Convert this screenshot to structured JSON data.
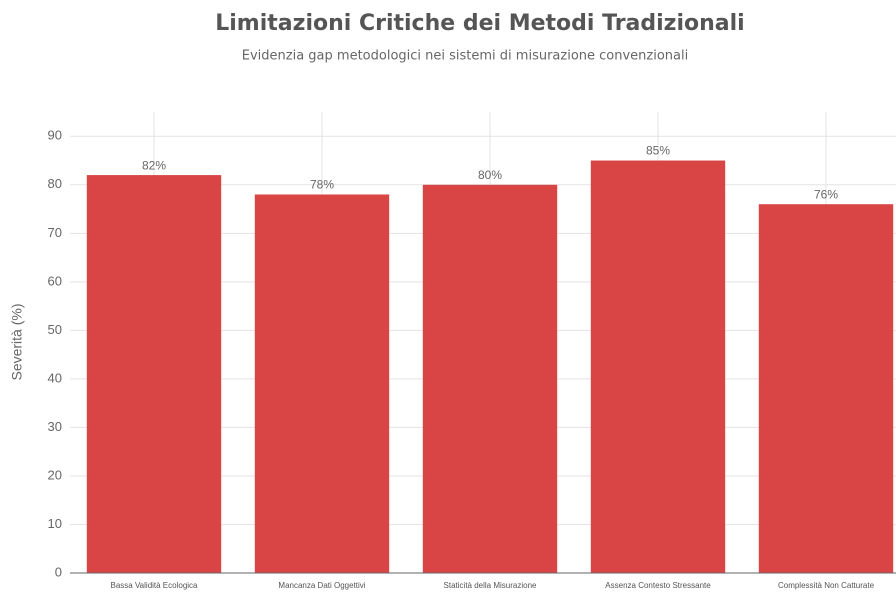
{
  "chart_data": {
    "type": "bar",
    "title": "Limitazioni Critiche dei Metodi Tradizionali",
    "subtitle": "Evidenzia gap metodologici nei sistemi di misurazione convenzionali",
    "ylabel": "Severità (%)",
    "categories": [
      "Bassa Validità Ecologica",
      "Mancanza Dati Oggettivi",
      "Staticità della Misurazione",
      "Assenza Contesto Stressante",
      "Complessità Non Catturate"
    ],
    "values": [
      82,
      78,
      80,
      85,
      76
    ],
    "value_labels": [
      "82%",
      "78%",
      "80%",
      "85%",
      "76%"
    ],
    "color": "#d94545",
    "ylim": [
      0,
      95
    ],
    "yticks": [
      0,
      10,
      20,
      30,
      40,
      50,
      60,
      70,
      80,
      90
    ],
    "grid": true
  }
}
